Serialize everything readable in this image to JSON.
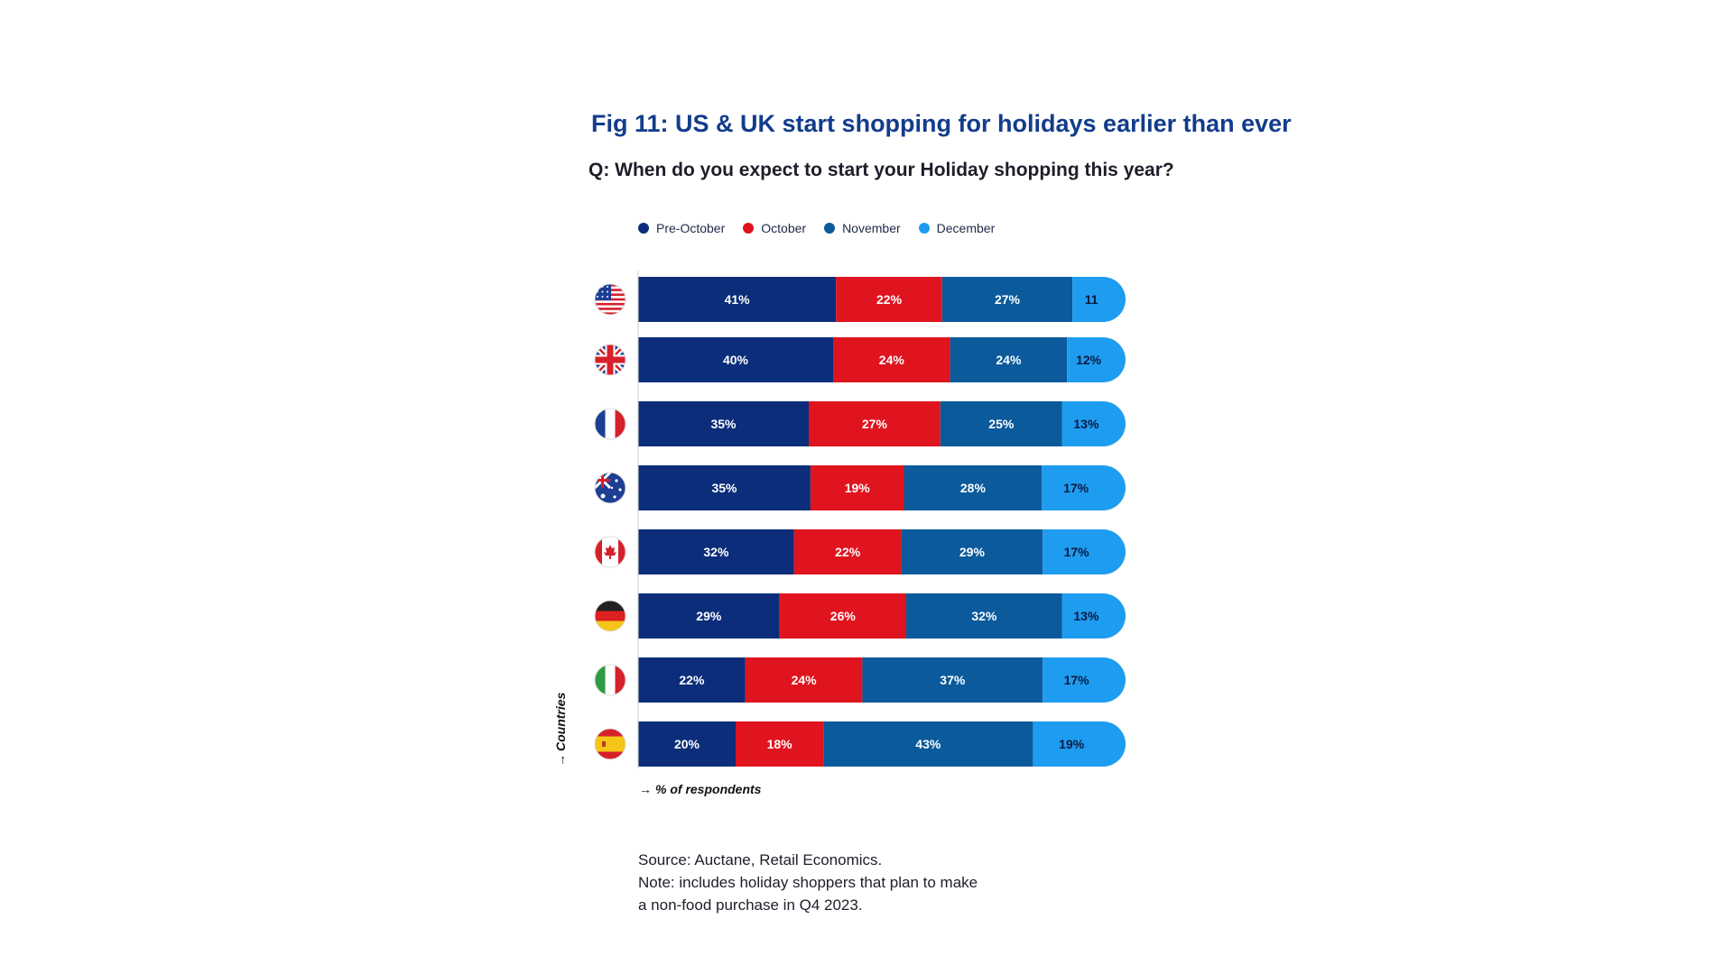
{
  "title": "Fig 11: US & UK start shopping for holidays earlier than ever",
  "question": "Q: When do you expect to start your Holiday shopping this year?",
  "colors": {
    "pre_october": "#0b2d7a",
    "october": "#e0141e",
    "november": "#0a5a9c",
    "december": "#1e9cf0"
  },
  "chart_data": {
    "type": "bar",
    "orientation": "horizontal-stacked",
    "categories": [
      "United States",
      "United Kingdom",
      "France",
      "Australia",
      "Canada",
      "Germany",
      "Italy",
      "Spain"
    ],
    "flag_icons": [
      "us-flag-icon",
      "uk-flag-icon",
      "france-flag-icon",
      "australia-flag-icon",
      "canada-flag-icon",
      "germany-flag-icon",
      "italy-flag-icon",
      "spain-flag-icon"
    ],
    "series": [
      {
        "name": "Pre-October",
        "color": "#0b2d7a",
        "values": [
          41,
          40,
          35,
          35,
          32,
          29,
          22,
          20
        ],
        "labels": [
          "41%",
          "40%",
          "35%",
          "35%",
          "32%",
          "29%",
          "22%",
          "20%"
        ]
      },
      {
        "name": "October",
        "color": "#e0141e",
        "values": [
          22,
          24,
          27,
          19,
          22,
          26,
          24,
          18
        ],
        "labels": [
          "22%",
          "24%",
          "27%",
          "19%",
          "22%",
          "26%",
          "24%",
          "18%"
        ]
      },
      {
        "name": "November",
        "color": "#0a5a9c",
        "values": [
          27,
          24,
          25,
          28,
          29,
          32,
          37,
          43
        ],
        "labels": [
          "27%",
          "24%",
          "25%",
          "28%",
          "29%",
          "32%",
          "37%",
          "43%"
        ]
      },
      {
        "name": "December",
        "color": "#1e9cf0",
        "values": [
          11,
          12,
          13,
          17,
          17,
          13,
          17,
          19
        ],
        "labels": [
          "11",
          "12%",
          "13%",
          "17%",
          "17%",
          "13%",
          "17%",
          "19%"
        ]
      }
    ],
    "xlabel": "% of respondents",
    "ylabel": "Countries",
    "legend_position": "top"
  },
  "source": {
    "line1": "Source: Auctane, Retail Economics.",
    "line2": "Note: includes holiday shoppers that plan to make",
    "line3": "a non-food purchase in Q4 2023."
  }
}
